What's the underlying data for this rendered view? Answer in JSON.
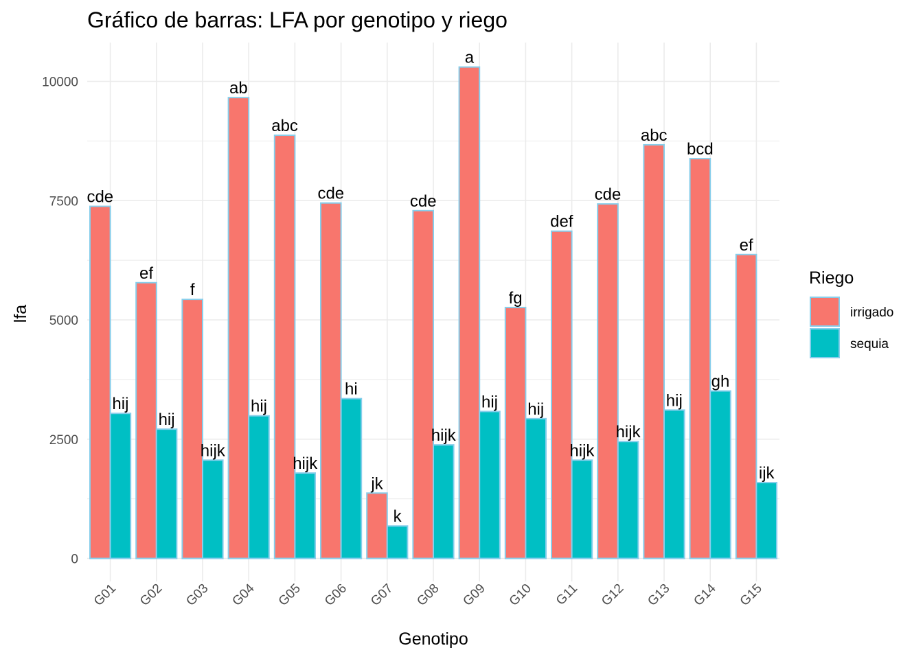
{
  "chart_data": {
    "type": "bar",
    "title": "Gráfico de barras: LFA por genotipo y riego",
    "xlabel": "Genotipo",
    "ylabel": "lfa",
    "ylim": [
      0,
      10600
    ],
    "yticks": [
      0,
      2500,
      5000,
      7500,
      10000
    ],
    "grid": true,
    "legend": {
      "title": "Riego",
      "position": "right"
    },
    "categories": [
      "G01",
      "G02",
      "G03",
      "G04",
      "G05",
      "G06",
      "G07",
      "G08",
      "G09",
      "G10",
      "G11",
      "G12",
      "G13",
      "G14",
      "G15"
    ],
    "series": [
      {
        "name": "irrigado",
        "color": "#F8766D",
        "values": [
          7380,
          5780,
          5430,
          9660,
          8870,
          7450,
          1370,
          7290,
          10300,
          5260,
          6860,
          7430,
          8670,
          8380,
          6370
        ],
        "labels": [
          "cde",
          "ef",
          "f",
          "ab",
          "abc",
          "cde",
          "jk",
          "cde",
          "a",
          "fg",
          "def",
          "cde",
          "abc",
          "bcd",
          "ef"
        ]
      },
      {
        "name": "sequia",
        "color": "#00BFC4",
        "values": [
          3040,
          2710,
          2060,
          2990,
          1790,
          3350,
          680,
          2380,
          3080,
          2930,
          2060,
          2450,
          3110,
          3510,
          1590
        ],
        "labels": [
          "hij",
          "hij",
          "hijk",
          "hij",
          "hijk",
          "hi",
          "k",
          "hijk",
          "hij",
          "hij",
          "hijk",
          "hijk",
          "hij",
          "gh",
          "ijk"
        ]
      }
    ],
    "bar_outline_color": "#87CEEB"
  }
}
